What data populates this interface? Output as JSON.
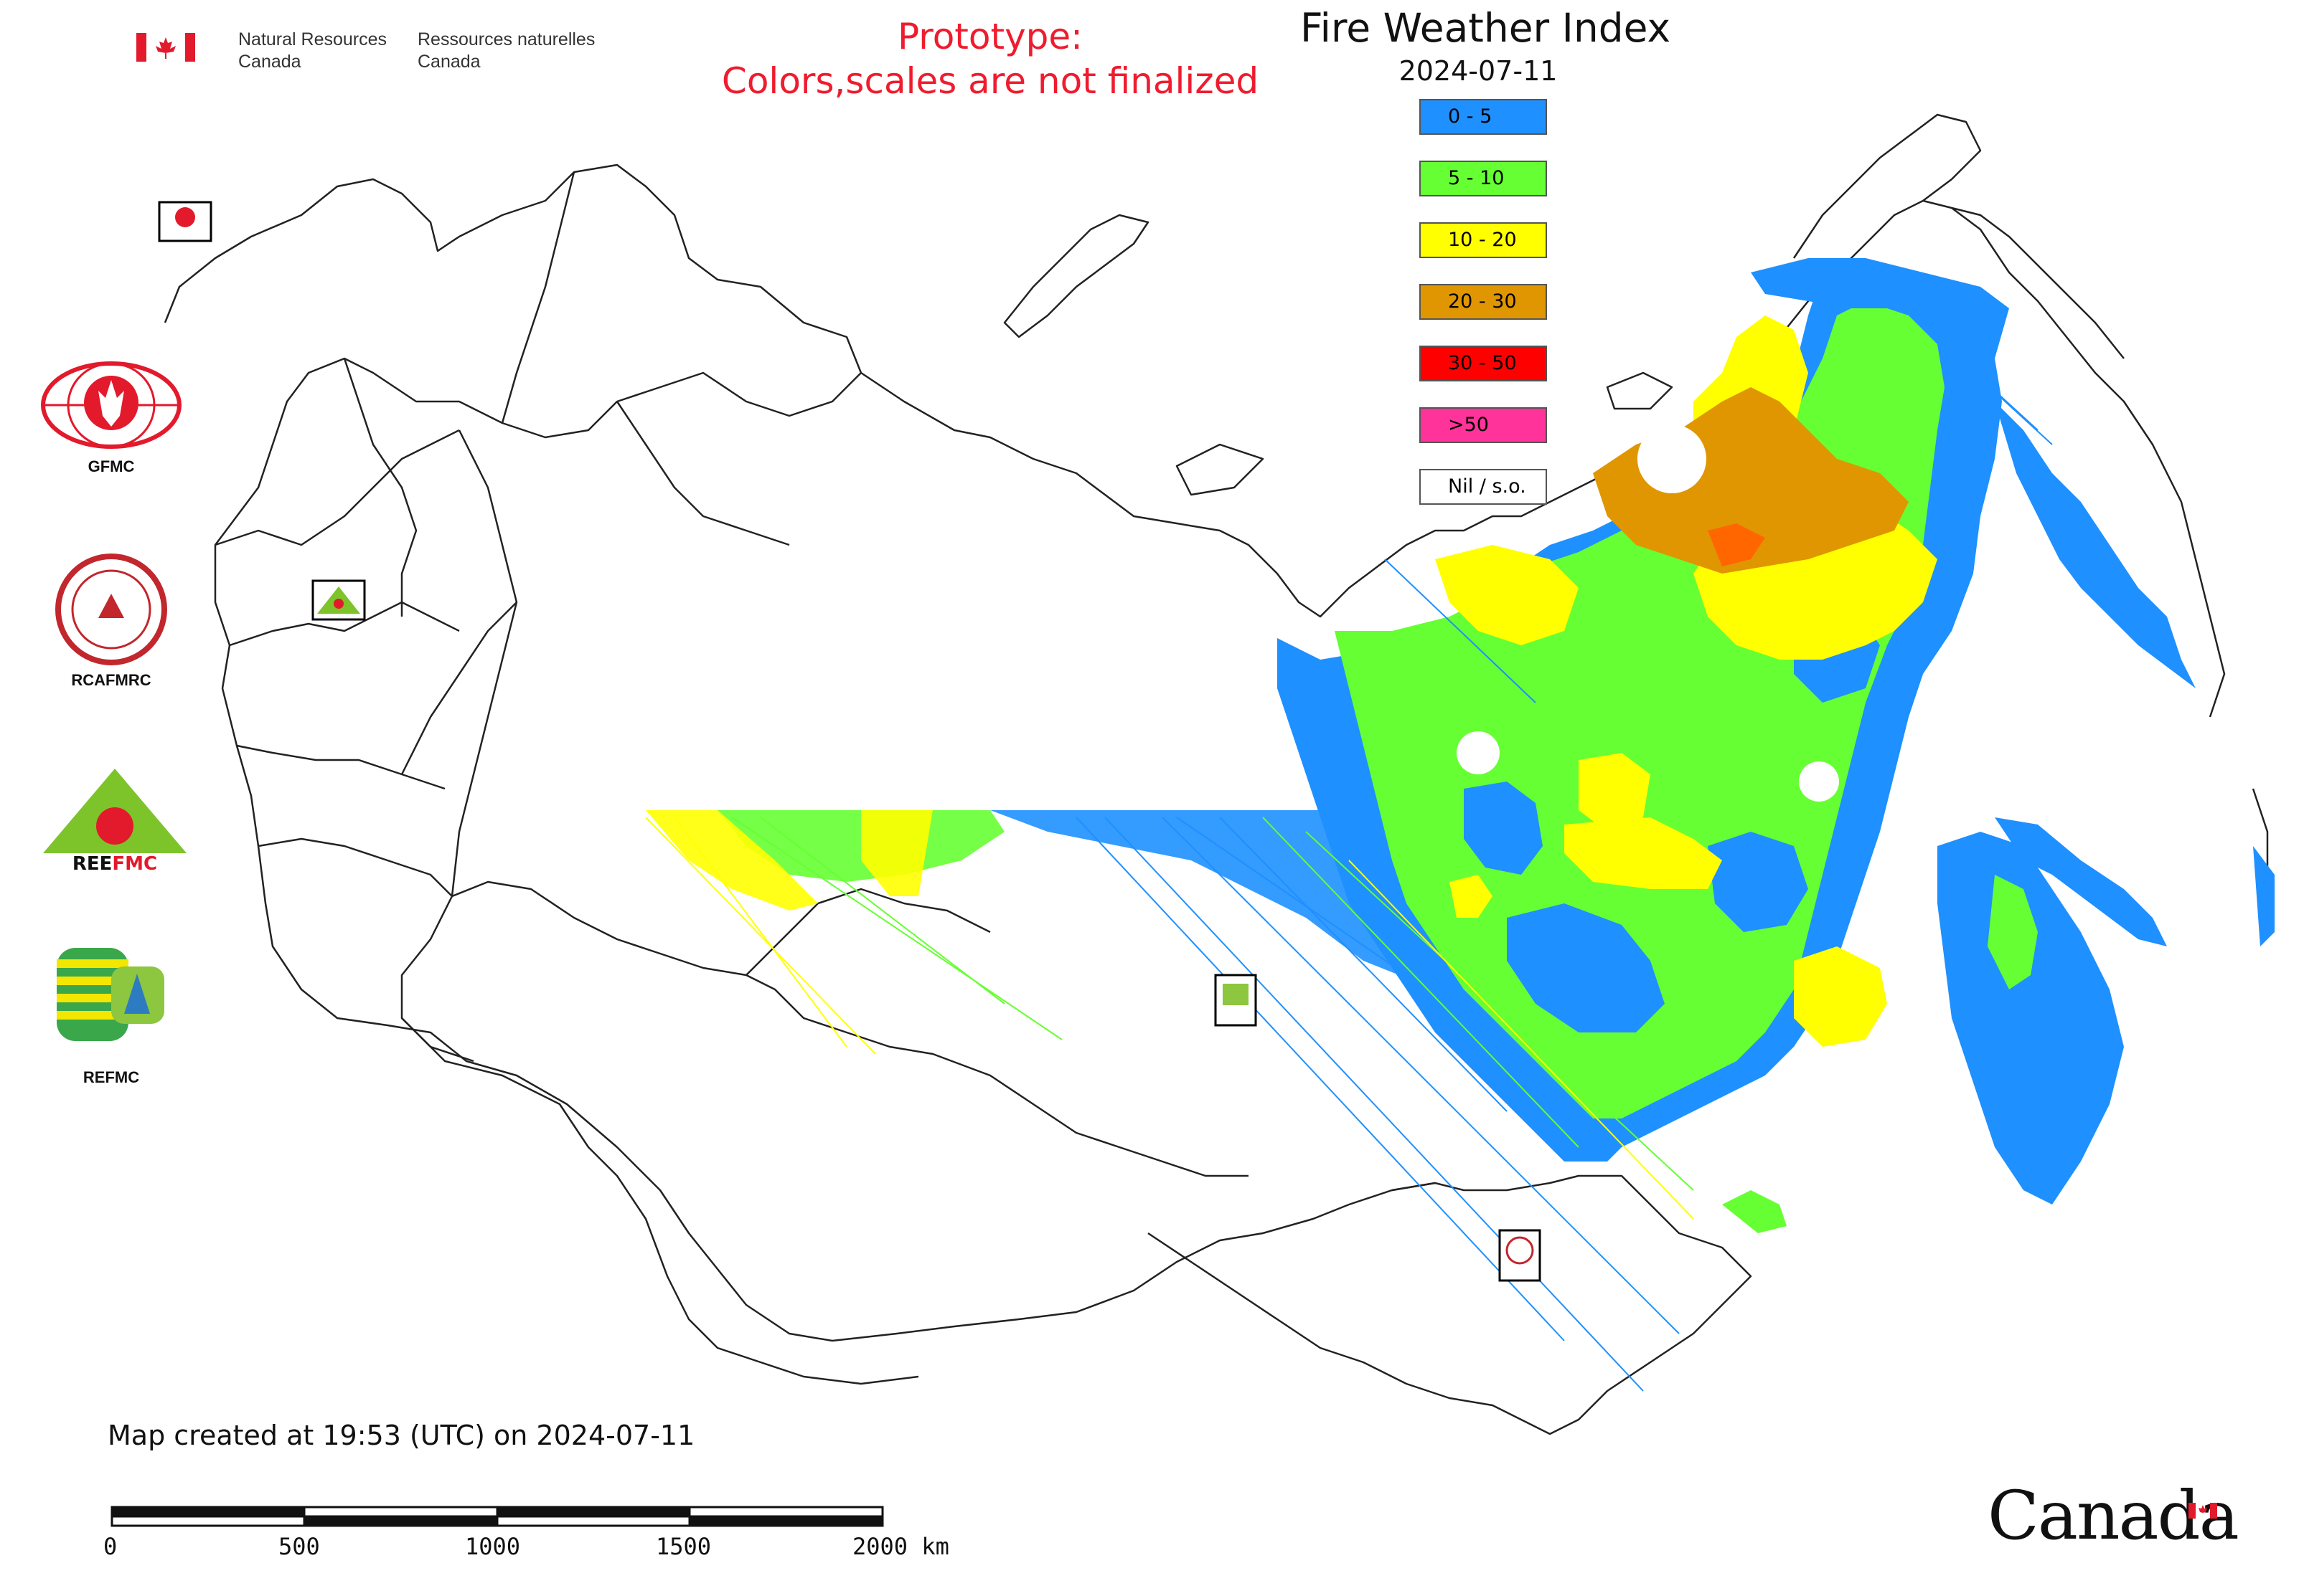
{
  "header": {
    "gov_name_en_line1": "Natural Resources",
    "gov_name_en_line2": "Canada",
    "gov_name_fr_line1": "Ressources naturelles",
    "gov_name_fr_line2": "Canada",
    "prototype_line1": "Prototype:",
    "prototype_line2": "Colors,scales are not finalized",
    "title": "Fire Weather Index",
    "date": "2024-07-11"
  },
  "legend": {
    "items": [
      {
        "label": "0 - 5",
        "color": "#1e90ff"
      },
      {
        "label": "5 - 10",
        "color": "#66ff33"
      },
      {
        "label": "10 - 20",
        "color": "#ffff00"
      },
      {
        "label": "20 - 30",
        "color": "#e09600"
      },
      {
        "label": "30 - 50",
        "color": "#ff0000"
      },
      {
        "label": ">50",
        "color": "#ff3399"
      },
      {
        "label": "Nil / s.o.",
        "color": "#ffffff"
      }
    ]
  },
  "side_logos": [
    {
      "name": "GFMC",
      "icon": "gfmc-logo"
    },
    {
      "name": "RCAFMRC",
      "icon": "rcafmrc-logo"
    },
    {
      "name": "REEFMC",
      "icon": "reefmc-logo"
    },
    {
      "name": "REFMC",
      "icon": "refmc-logo"
    }
  ],
  "map_markers": [
    {
      "name": "GFMC",
      "icon": "gfmc-marker"
    },
    {
      "name": "REEFMC",
      "icon": "reefmc-marker"
    },
    {
      "name": "REFMC",
      "icon": "refmc-marker"
    },
    {
      "name": "RCAFMRC",
      "icon": "rcafmrc-marker"
    }
  ],
  "footer": {
    "caption": "Map created at 19:53 (UTC) on 2024-07-11",
    "scale_ticks": [
      "0",
      "500",
      "1000",
      "1500",
      "2000 km"
    ],
    "wordmark": "Canada"
  }
}
